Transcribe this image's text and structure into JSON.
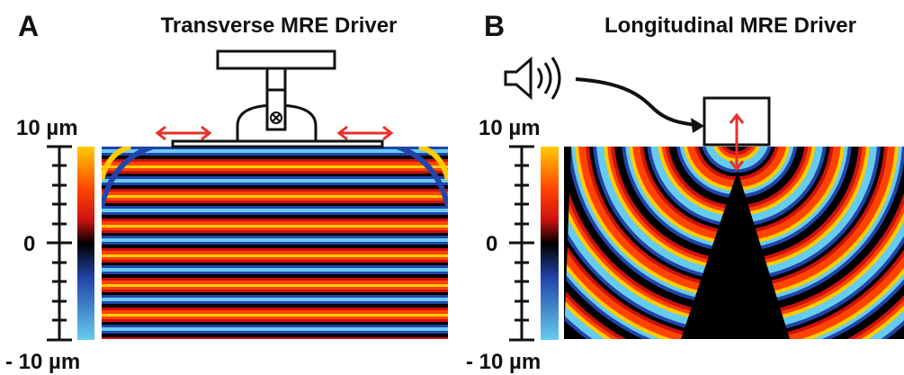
{
  "panel_a": {
    "letter": "A",
    "title": "Transverse MRE Driver",
    "scale_top": "10 µm",
    "scale_mid": "0",
    "scale_bottom": "- 10 µm"
  },
  "panel_b": {
    "letter": "B",
    "title": "Longitudinal MRE Driver",
    "scale_top": "10 µm",
    "scale_mid": "0",
    "scale_bottom": "- 10 µm"
  },
  "colormap": [
    "#66ccee",
    "#2244aa",
    "#000000",
    "#cc1111",
    "#ff4400",
    "#ffcc00"
  ],
  "icons": {
    "speaker": "speaker-icon",
    "motion_arrow": "double-headed-arrow-icon",
    "rotation_axis": "circled-x-icon"
  },
  "arrow_color": "#e8302a"
}
